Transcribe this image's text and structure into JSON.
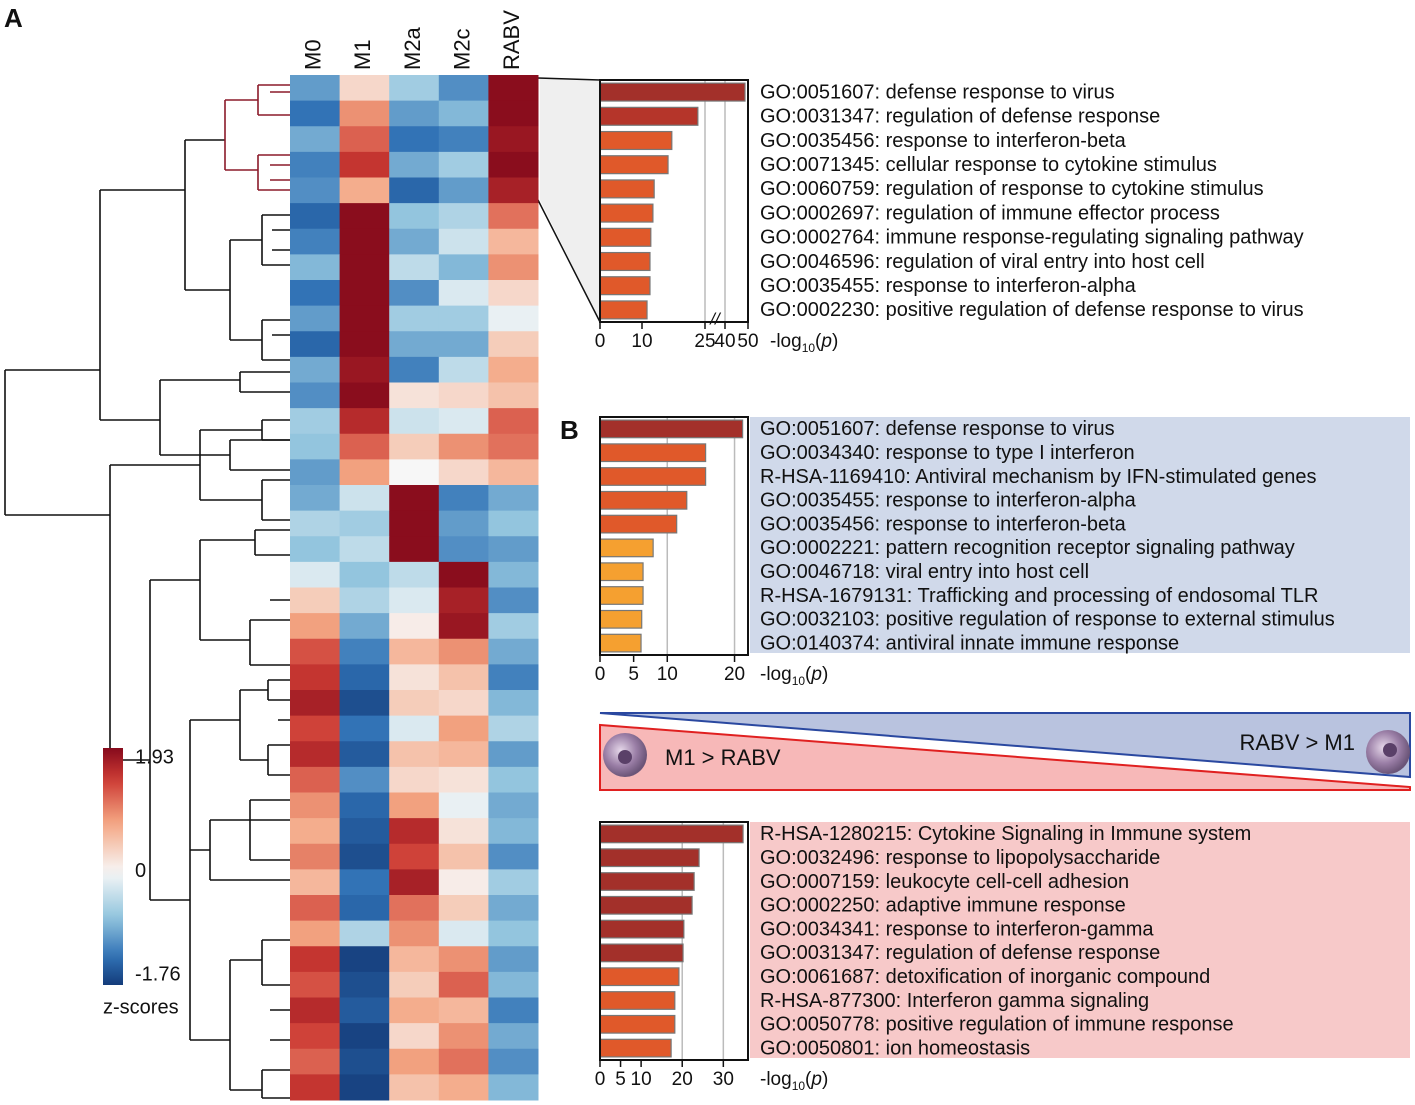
{
  "panels": {
    "a": "A",
    "b": "B"
  },
  "contrast": {
    "left": "M1 > RABV",
    "right": "RABV > M1"
  },
  "chart_data": [
    {
      "type": "heatmap",
      "columns": [
        "M0",
        "M1",
        "M2a",
        "M2c",
        "RABV"
      ],
      "values": [
        [
          -1.0,
          0.3,
          -0.6,
          -1.1,
          1.9
        ],
        [
          -1.3,
          0.9,
          -1.0,
          -0.8,
          1.9
        ],
        [
          -0.9,
          1.2,
          -1.3,
          -1.2,
          1.8
        ],
        [
          -1.2,
          1.5,
          -0.9,
          -0.6,
          1.9
        ],
        [
          -1.1,
          0.7,
          -1.4,
          -1.0,
          1.7
        ],
        [
          -1.4,
          1.9,
          -0.7,
          -0.5,
          1.1
        ],
        [
          -1.2,
          1.9,
          -0.9,
          -0.3,
          0.6
        ],
        [
          -0.8,
          1.9,
          -0.4,
          -0.8,
          0.9
        ],
        [
          -1.3,
          1.9,
          -1.1,
          -0.2,
          0.3
        ],
        [
          -1.0,
          1.9,
          -0.6,
          -0.6,
          -0.1
        ],
        [
          -1.4,
          1.9,
          -0.9,
          -0.9,
          0.4
        ],
        [
          -0.9,
          1.8,
          -1.2,
          -0.4,
          0.7
        ],
        [
          -1.1,
          1.9,
          0.2,
          0.3,
          0.5
        ],
        [
          -0.6,
          1.6,
          -0.3,
          -0.2,
          1.2
        ],
        [
          -0.7,
          1.2,
          0.4,
          0.9,
          1.1
        ],
        [
          -1.0,
          0.8,
          0.0,
          0.3,
          0.6
        ],
        [
          -0.9,
          -0.3,
          1.9,
          -1.2,
          -0.9
        ],
        [
          -0.5,
          -0.6,
          1.9,
          -1.0,
          -0.7
        ],
        [
          -0.7,
          -0.4,
          1.9,
          -1.1,
          -1.0
        ],
        [
          -0.2,
          -0.7,
          -0.4,
          1.9,
          -0.8
        ],
        [
          0.4,
          -0.5,
          -0.2,
          1.7,
          -1.1
        ],
        [
          0.8,
          -0.9,
          0.1,
          1.8,
          -0.6
        ],
        [
          1.3,
          -1.2,
          0.6,
          0.9,
          -0.9
        ],
        [
          1.5,
          -1.4,
          0.2,
          0.5,
          -1.2
        ],
        [
          1.7,
          -1.6,
          0.4,
          0.3,
          -0.8
        ],
        [
          1.4,
          -1.3,
          -0.2,
          0.8,
          -0.5
        ],
        [
          1.6,
          -1.5,
          0.5,
          0.6,
          -1.0
        ],
        [
          1.2,
          -1.1,
          0.3,
          0.2,
          -0.7
        ],
        [
          0.9,
          -1.4,
          0.8,
          -0.1,
          -0.9
        ],
        [
          0.7,
          -1.5,
          1.6,
          0.2,
          -0.8
        ],
        [
          1.0,
          -1.6,
          1.4,
          0.5,
          -1.1
        ],
        [
          0.6,
          -1.3,
          1.7,
          0.1,
          -0.6
        ],
        [
          1.2,
          -1.4,
          1.1,
          0.4,
          -0.9
        ],
        [
          0.8,
          -0.5,
          0.9,
          -0.2,
          -0.7
        ],
        [
          1.5,
          -1.7,
          0.6,
          0.9,
          -1.0
        ],
        [
          1.3,
          -1.6,
          0.4,
          1.2,
          -0.8
        ],
        [
          1.6,
          -1.5,
          0.7,
          0.6,
          -1.2
        ],
        [
          1.4,
          -1.7,
          0.3,
          0.9,
          -0.9
        ],
        [
          1.2,
          -1.6,
          0.8,
          1.1,
          -1.1
        ],
        [
          1.5,
          -1.7,
          0.5,
          0.7,
          -0.8
        ]
      ],
      "colorbar": {
        "lim": [
          -1.76,
          1.93
        ],
        "ticks": [
          1.93,
          0,
          -1.76
        ],
        "label": "z-scores"
      }
    },
    {
      "type": "bar",
      "categories": [
        "GO:0051607: defense response to virus",
        "GO:0031347: regulation of defense response",
        "GO:0035456: response to interferon-beta",
        "GO:0071345: cellular response to cytokine stimulus",
        "GO:0060759: regulation of response to cytokine stimulus",
        "GO:0002697: regulation of immune effector process",
        "GO:0002764: immune response-regulating signaling pathway",
        "GO:0046596: regulation of viral entry into host cell",
        "GO:0035455: response to interferon-alpha",
        "GO:0002230: positive regulation of defense response to virus"
      ],
      "values": [
        48.7,
        23.3,
        17.1,
        16.2,
        12.9,
        12.6,
        12.1,
        11.9,
        11.9,
        11.2
      ],
      "colors": [
        "#a3302a",
        "#b5352a",
        "#e0592a",
        "#e0592a",
        "#e0592a",
        "#e0592a",
        "#e0592a",
        "#e0592a",
        "#e0592a",
        "#e0592a"
      ],
      "xlim": [
        0,
        50
      ],
      "xticks": [
        0,
        10,
        25,
        40,
        50
      ],
      "gridlines": [
        25,
        40
      ],
      "break": [
        25,
        40
      ],
      "break_mark": "//",
      "x_label": [
        "-log",
        "10",
        "(",
        "p",
        ")"
      ]
    },
    {
      "type": "bar",
      "categories": [
        "GO:0051607: defense response to virus",
        "GO:0034340: response to type I interferon",
        "R-HSA-1169410: Antiviral mechanism by IFN-stimulated genes",
        "GO:0035455: response to interferon-alpha",
        "GO:0035456: response to interferon-beta",
        "GO:0002221: pattern recognition receptor signaling pathway",
        "GO:0046718: viral entry into host cell",
        "R-HSA-1679131: Trafficking and processing of endosomal TLR",
        "GO:0032103: positive regulation of response to external stimulus",
        "GO:0140374: antiviral innate immune response"
      ],
      "values": [
        21.2,
        15.7,
        15.7,
        12.9,
        11.4,
        7.9,
        6.4,
        6.4,
        6.2,
        6.1
      ],
      "colors": [
        "#a3302a",
        "#e0592a",
        "#e0592a",
        "#e0592a",
        "#e0592a",
        "#f5a030",
        "#f5a030",
        "#f5a030",
        "#f5a030",
        "#f5a030"
      ],
      "xlim": [
        0,
        22
      ],
      "xticks": [
        0,
        5,
        10,
        20
      ],
      "gridlines": [
        10,
        20
      ],
      "background": "#d0d9ea",
      "x_label": [
        "-log",
        "10",
        "(",
        "p",
        ")"
      ]
    },
    {
      "type": "bar",
      "categories": [
        "R-HSA-1280215: Cytokine Signaling in Immune system",
        "GO:0032496: response to lipopolysaccharide",
        "GO:0007159: leukocyte cell-cell adhesion",
        "GO:0002250: adaptive immune response",
        "GO:0034341: response to interferon-gamma",
        "GO:0031347: regulation of defense response",
        "GO:0061687: detoxification of inorganic compound",
        "R-HSA-877300: Interferon gamma signaling",
        "GO:0050778: positive regulation of immune response",
        "GO:0050801: ion homeostasis"
      ],
      "values": [
        34.8,
        24.1,
        22.9,
        22.4,
        20.4,
        20.2,
        19.2,
        18.2,
        18.2,
        17.3
      ],
      "colors": [
        "#a3302a",
        "#a3302a",
        "#a3302a",
        "#a3302a",
        "#a3302a",
        "#a3302a",
        "#e0592a",
        "#e0592a",
        "#e0592a",
        "#e0592a"
      ],
      "xlim": [
        0,
        36
      ],
      "xticks": [
        0,
        5,
        10,
        20,
        30
      ],
      "gridlines": [
        20,
        30
      ],
      "background": "#f7c9c9",
      "x_label": [
        "-log",
        "10",
        "(",
        "p",
        ")"
      ]
    }
  ]
}
